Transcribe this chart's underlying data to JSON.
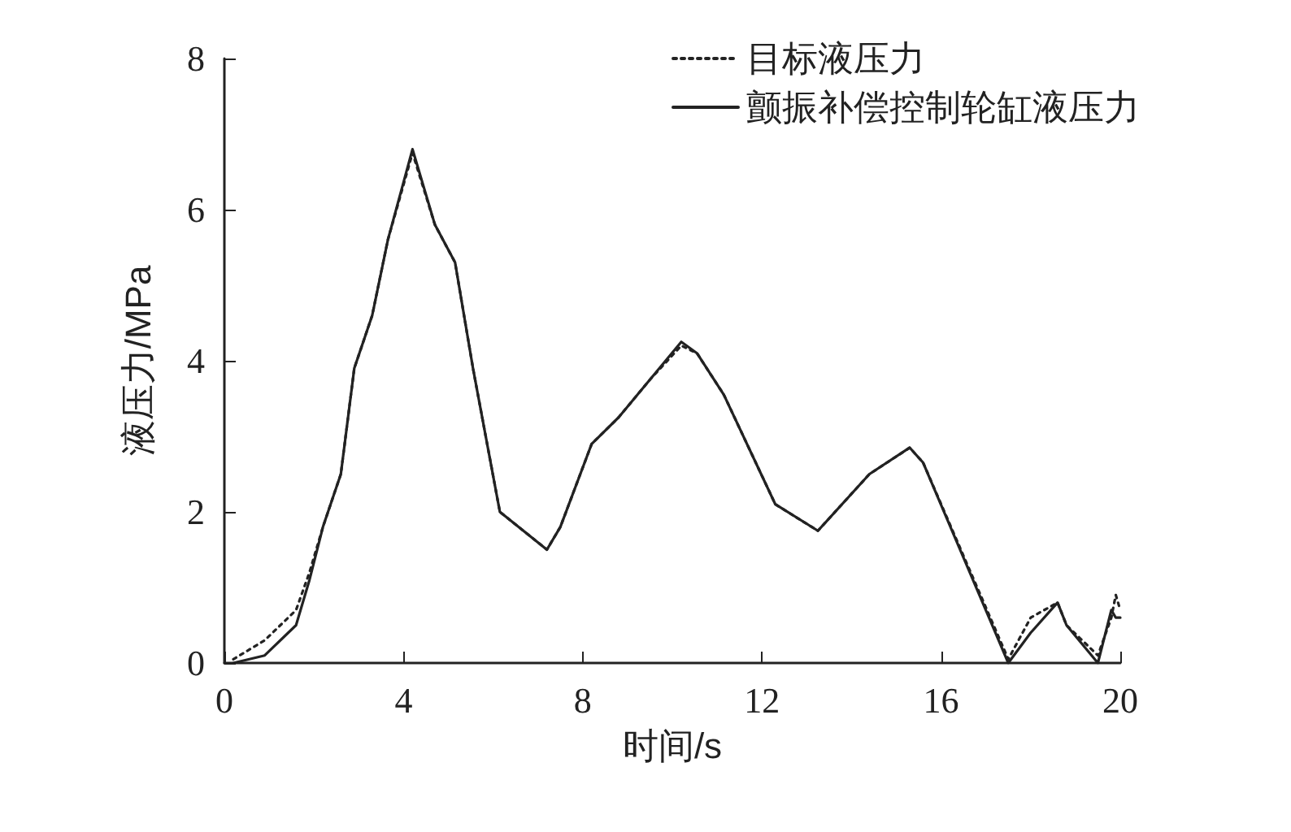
{
  "chart_data": {
    "type": "line",
    "xlabel": "时间/s",
    "ylabel": "液压力/MPa",
    "xlim": [
      0,
      20
    ],
    "xticks": [
      0,
      4,
      8,
      12,
      16,
      20
    ],
    "ylim": [
      0,
      8
    ],
    "yticks": [
      0,
      2,
      4,
      6,
      8
    ],
    "grid": false,
    "legend": "top right",
    "marker": "none",
    "series": [
      {
        "name": "目标液压力",
        "color": "#222222",
        "line_style": "dotted",
        "x": [
          0.2,
          0.9,
          1.6,
          1.9,
          2.2,
          2.6,
          2.9,
          3.3,
          3.65,
          4.2,
          4.7,
          5.15,
          5.55,
          6.15,
          7.2,
          7.5,
          8.2,
          8.8,
          9.5,
          10.2,
          10.55,
          11.15,
          12.3,
          13.25,
          14.4,
          15.3,
          15.6,
          17.5,
          18.0,
          18.6,
          18.8,
          19.5,
          19.8,
          19.9,
          20
        ],
        "values": [
          0.05,
          0.3,
          0.7,
          1.2,
          1.8,
          2.5,
          3.9,
          4.6,
          5.6,
          6.75,
          5.8,
          5.3,
          3.9,
          2.0,
          1.5,
          1.8,
          2.9,
          3.25,
          3.75,
          4.2,
          4.1,
          3.55,
          2.1,
          1.75,
          2.5,
          2.85,
          2.65,
          0.05,
          0.6,
          0.8,
          0.5,
          0.1,
          0.6,
          0.9,
          0.7
        ]
      },
      {
        "name": "颤振补偿控制轮缸液压力",
        "color": "#222222",
        "line_style": "solid",
        "x": [
          0.2,
          0.9,
          1.6,
          1.9,
          2.2,
          2.6,
          2.9,
          3.3,
          3.65,
          4.2,
          4.7,
          5.15,
          5.55,
          6.15,
          7.2,
          7.5,
          8.2,
          8.8,
          9.5,
          10.2,
          10.55,
          11.15,
          12.3,
          13.25,
          14.4,
          15.3,
          15.6,
          17.5,
          18.0,
          18.6,
          18.8,
          19.5,
          19.8,
          19.9,
          20
        ],
        "values": [
          0,
          0.1,
          0.5,
          1.1,
          1.8,
          2.5,
          3.9,
          4.6,
          5.6,
          6.8,
          5.8,
          5.3,
          3.9,
          2.0,
          1.5,
          1.8,
          2.9,
          3.25,
          3.75,
          4.25,
          4.1,
          3.55,
          2.1,
          1.75,
          2.5,
          2.85,
          2.65,
          0,
          0.4,
          0.8,
          0.5,
          0,
          0.7,
          0.6,
          0.6
        ]
      }
    ]
  }
}
